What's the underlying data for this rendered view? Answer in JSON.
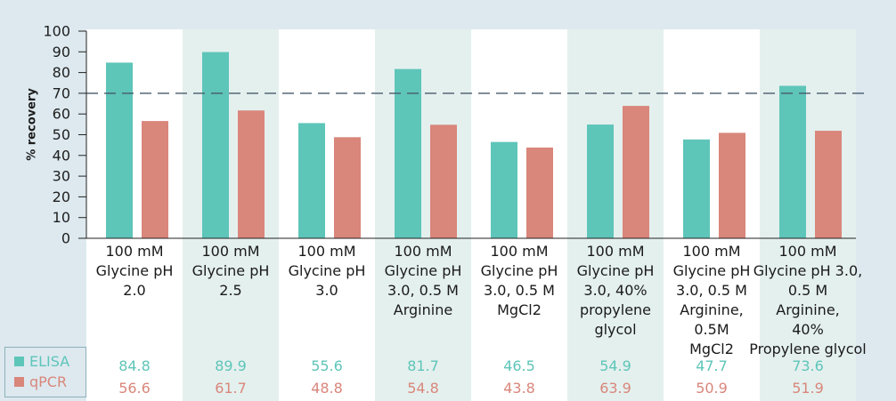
{
  "chart_data": {
    "type": "bar",
    "ylabel": "% recovery",
    "ylim": [
      0,
      100
    ],
    "yticks": [
      0,
      10,
      20,
      30,
      40,
      50,
      60,
      70,
      80,
      90,
      100
    ],
    "reference_line": 70,
    "categories": [
      "100 mM\nGlycine pH\n2.0",
      "100 mM\nGlycine pH\n2.5",
      "100 mM\nGlycine pH\n3.0",
      "100 mM\nGlycine pH\n3.0, 0.5 M\nArginine",
      "100 mM\nGlycine pH\n3.0, 0.5 M\nMgCl2",
      "100 mM\nGlycine pH\n3.0, 40%\npropylene\nglycol",
      "100 mM\nGlycine pH\n3.0, 0.5 M\nArginine,\n0.5M\nMgCl2",
      "100 mM\nGlycine pH 3.0,\n0.5 M\nArginine,\n40%\nPropylene glycol"
    ],
    "series": [
      {
        "name": "ELISA",
        "color": "#5ec5b9",
        "values": [
          84.8,
          89.9,
          55.6,
          81.7,
          46.5,
          54.9,
          47.7,
          73.6
        ]
      },
      {
        "name": "qPCR",
        "color": "#d9867b",
        "values": [
          56.6,
          61.7,
          48.8,
          54.8,
          43.8,
          63.9,
          50.9,
          51.9
        ]
      }
    ]
  },
  "colors": {
    "background": "#dde9ef",
    "band_plain": "#ffffff",
    "band_shaded": "#e4f0ee",
    "axis": "#222222",
    "text": "#1e1e1e",
    "reference_line": "#475a6b",
    "legend_border": "#8eb0ba"
  }
}
